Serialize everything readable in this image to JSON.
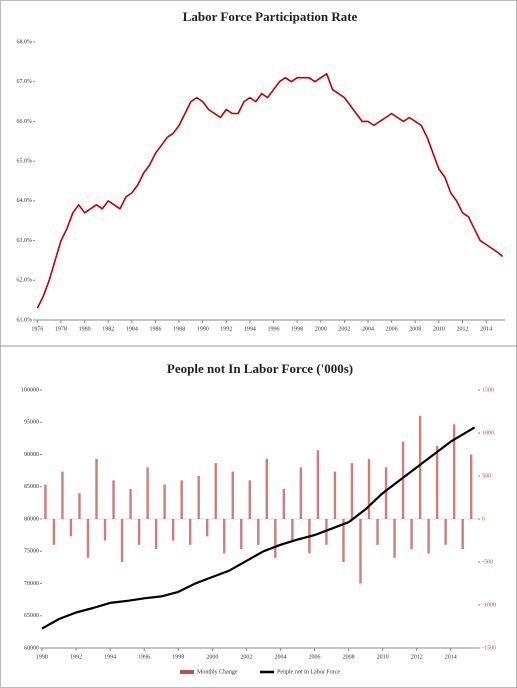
{
  "chart_data": [
    {
      "type": "line",
      "title": "Labor Force Participation Rate",
      "xlim": [
        1975.8,
        2015.6
      ],
      "xticks": [
        1976,
        1978,
        1980,
        1982,
        1984,
        1986,
        1988,
        1990,
        1992,
        1994,
        1996,
        1998,
        2000,
        2002,
        2004,
        2006,
        2008,
        2010,
        2012,
        2014
      ],
      "ylim": [
        61,
        68
      ],
      "yticks": [
        {
          "value": 61,
          "label": "61.0%"
        },
        {
          "value": 62,
          "label": "62.0%"
        },
        {
          "value": 63,
          "label": "63.0%"
        },
        {
          "value": 64,
          "label": "64.0%"
        },
        {
          "value": 65,
          "label": "65.0%"
        },
        {
          "value": 66,
          "label": "66.0%"
        },
        {
          "value": 67,
          "label": "67.0%"
        },
        {
          "value": 68,
          "label": "68.0%"
        }
      ],
      "series": [
        {
          "color": "#c00000",
          "x": [
            1976,
            1976.5,
            1977,
            1977.5,
            1978,
            1978.5,
            1979,
            1979.5,
            1980,
            1980.5,
            1981,
            1981.5,
            1982,
            1982.5,
            1983,
            1983.5,
            1984,
            1984.5,
            1985,
            1985.5,
            1986,
            1986.5,
            1987,
            1987.5,
            1988,
            1988.5,
            1989,
            1989.5,
            1990,
            1990.5,
            1991,
            1991.5,
            1992,
            1992.5,
            1993,
            1993.5,
            1994,
            1994.5,
            1995,
            1995.5,
            1996,
            1996.5,
            1997,
            1997.5,
            1998,
            1998.5,
            1999,
            1999.5,
            2000,
            2000.5,
            2001,
            2001.5,
            2002,
            2002.5,
            2003,
            2003.5,
            2004,
            2004.5,
            2005,
            2005.5,
            2006,
            2006.5,
            2007,
            2007.5,
            2008,
            2008.5,
            2009,
            2009.5,
            2010,
            2010.5,
            2011,
            2011.5,
            2012,
            2012.5,
            2013,
            2013.5,
            2014,
            2014.5,
            2015,
            2015.4
          ],
          "values": [
            61.3,
            61.6,
            62.0,
            62.5,
            63.0,
            63.3,
            63.7,
            63.9,
            63.7,
            63.8,
            63.9,
            63.8,
            64.0,
            63.9,
            63.8,
            64.1,
            64.2,
            64.4,
            64.7,
            64.9,
            65.2,
            65.4,
            65.6,
            65.7,
            65.9,
            66.2,
            66.5,
            66.6,
            66.5,
            66.3,
            66.2,
            66.1,
            66.3,
            66.2,
            66.2,
            66.5,
            66.6,
            66.5,
            66.7,
            66.6,
            66.8,
            67.0,
            67.1,
            67.0,
            67.1,
            67.1,
            67.1,
            67.0,
            67.1,
            67.2,
            66.8,
            66.7,
            66.6,
            66.4,
            66.2,
            66.0,
            66.0,
            65.9,
            66.0,
            66.1,
            66.2,
            66.1,
            66.0,
            66.1,
            66.0,
            65.9,
            65.6,
            65.2,
            64.8,
            64.6,
            64.2,
            64.0,
            63.7,
            63.6,
            63.3,
            63.0,
            62.9,
            62.8,
            62.7,
            62.6
          ]
        }
      ]
    },
    {
      "type": "line",
      "title": "People not In Labor Force ('000s)",
      "xlim": [
        1990,
        2015.6
      ],
      "xticks": [
        1990,
        1992,
        1994,
        1996,
        1998,
        2000,
        2002,
        2004,
        2006,
        2008,
        2010,
        2012,
        2014
      ],
      "ylim": [
        60000,
        100000
      ],
      "yticks": [
        60000,
        65000,
        70000,
        75000,
        80000,
        85000,
        90000,
        95000,
        100000
      ],
      "y2lim": [
        -1500,
        1500
      ],
      "y2ticks": [
        -1500,
        -1000,
        -500,
        0,
        500,
        1000,
        1500
      ],
      "legend": "bottom",
      "series": [
        {
          "name": "Monthly Change",
          "type": "bar",
          "axis": "y2",
          "color": "#c0504d",
          "x": [
            1990.2,
            1990.7,
            1991.2,
            1991.7,
            1992.2,
            1992.7,
            1993.2,
            1993.7,
            1994.2,
            1994.7,
            1995.2,
            1995.7,
            1996.2,
            1996.7,
            1997.2,
            1997.7,
            1998.2,
            1998.7,
            1999.2,
            1999.7,
            2000.2,
            2000.7,
            2001.2,
            2001.7,
            2002.2,
            2002.7,
            2003.2,
            2003.7,
            2004.2,
            2004.7,
            2005.2,
            2005.7,
            2006.2,
            2006.7,
            2007.2,
            2007.7,
            2008.2,
            2008.7,
            2009.2,
            2009.7,
            2010.2,
            2010.7,
            2011.2,
            2011.7,
            2012.2,
            2012.7,
            2013.2,
            2013.7,
            2014.2,
            2014.7,
            2015.2
          ],
          "values": [
            400,
            -300,
            550,
            -200,
            300,
            -450,
            700,
            -250,
            450,
            -500,
            350,
            -300,
            600,
            -350,
            400,
            -250,
            450,
            -300,
            500,
            -200,
            650,
            -400,
            550,
            -350,
            450,
            -300,
            700,
            -450,
            350,
            -250,
            600,
            -400,
            800,
            -300,
            550,
            -500,
            650,
            -750,
            700,
            -300,
            600,
            -450,
            900,
            -350,
            1200,
            -400,
            850,
            -300,
            1100,
            -350,
            750
          ]
        },
        {
          "name": "People not In Labor Force",
          "type": "line",
          "color": "#000000",
          "x": [
            1990,
            1991,
            1992,
            1993,
            1994,
            1995,
            1996,
            1997,
            1998,
            1999,
            2000,
            2001,
            2002,
            2003,
            2004,
            2005,
            2006,
            2007,
            2008,
            2009,
            2010,
            2011,
            2012,
            2013,
            2014,
            2015.4
          ],
          "values": [
            63000,
            64500,
            65500,
            66200,
            67000,
            67300,
            67700,
            68000,
            68700,
            70000,
            71000,
            72000,
            73500,
            75000,
            76000,
            76800,
            77500,
            78500,
            79500,
            81500,
            84000,
            86000,
            88000,
            90000,
            92000,
            94200
          ]
        }
      ]
    }
  ]
}
